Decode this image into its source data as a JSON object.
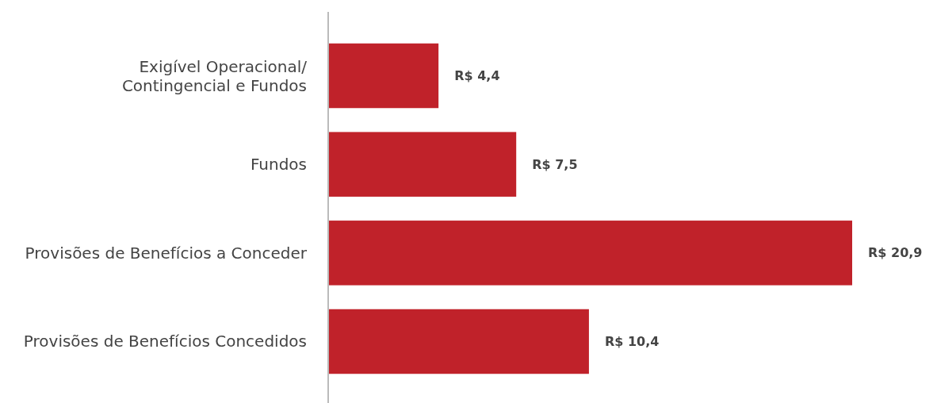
{
  "chart_data": {
    "type": "bar",
    "orientation": "horizontal",
    "categories": [
      "Exigível Operacional/\nContingencial e Fundos",
      "Fundos",
      "Provisões de Benefícios a Conceder",
      "Provisões de Benefícios Concedidos"
    ],
    "values": [
      4.4,
      7.5,
      20.9,
      10.4
    ],
    "color": "#c0222a",
    "value_labels": [
      "R$ 4,4",
      "R$ 7,5",
      "R$ 20,9",
      "R$ 10,4"
    ]
  }
}
